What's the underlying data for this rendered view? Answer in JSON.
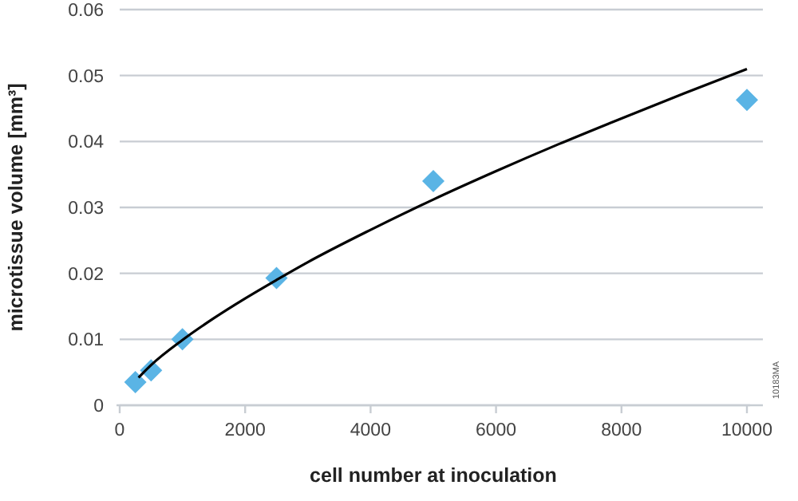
{
  "chart_data": {
    "type": "scatter",
    "xlabel": "cell number at inoculation",
    "ylabel": "microtissue volume [mm³]",
    "xlim": [
      0,
      10000
    ],
    "xticks": [
      0,
      2000,
      4000,
      6000,
      8000,
      10000
    ],
    "ylim": [
      0,
      0.06
    ],
    "yticks": [
      0,
      0.01,
      0.02,
      0.03,
      0.04,
      0.05,
      0.06
    ],
    "grid": "y",
    "series": [
      {
        "color": "#5ab4e5",
        "marker": "diamond",
        "x": [
          250,
          500,
          1000,
          2500,
          5000,
          10000
        ],
        "values": [
          0.0035,
          0.0053,
          0.01,
          0.0193,
          0.034,
          0.0463
        ]
      },
      {
        "type": "line",
        "color": "#000000",
        "marker": "none",
        "line_style": "solid",
        "x": [
          300,
          500,
          1000,
          1500,
          2000,
          2500,
          3000,
          4000,
          5000,
          6000,
          7000,
          8000,
          9000,
          10000
        ],
        "values": [
          0.0042,
          0.0061,
          0.0099,
          0.0132,
          0.0162,
          0.019,
          0.0217,
          0.0266,
          0.0312,
          0.0355,
          0.0396,
          0.0435,
          0.0473,
          0.051
        ]
      }
    ],
    "annotations": [
      "10183MA"
    ]
  }
}
